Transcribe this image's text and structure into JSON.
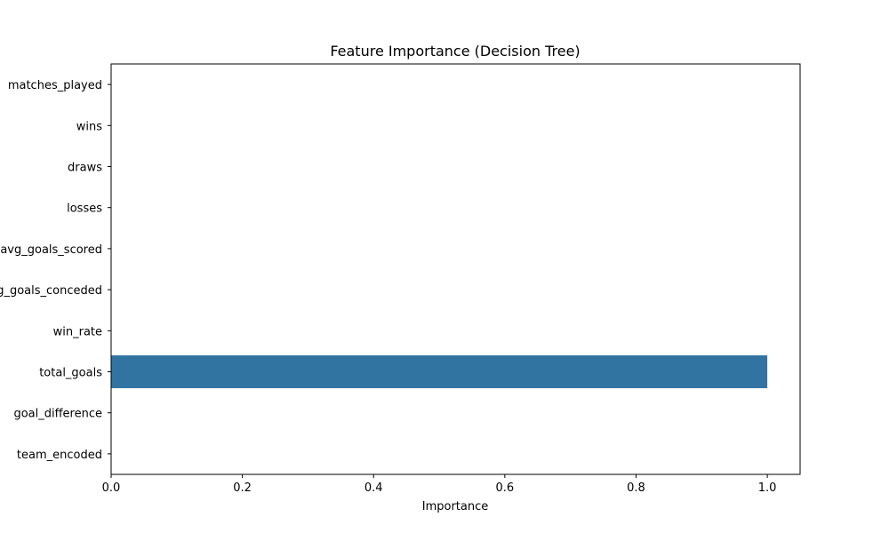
{
  "chart_data": {
    "type": "bar",
    "orientation": "horizontal",
    "title": "Feature Importance (Decision Tree)",
    "xlabel": "Importance",
    "ylabel": "",
    "categories": [
      "matches_played",
      "wins",
      "draws",
      "losses",
      "avg_goals_scored",
      "avg_goals_conceded",
      "win_rate",
      "total_goals",
      "goal_difference",
      "team_encoded"
    ],
    "values": [
      0,
      0,
      0,
      0,
      0,
      0,
      0,
      1.0,
      0,
      0
    ],
    "xlim": [
      0,
      1.05
    ],
    "xticks": [
      "0.0",
      "0.2",
      "0.4",
      "0.6",
      "0.8",
      "1.0"
    ],
    "grid": false,
    "bar_color": "#3274a1"
  }
}
